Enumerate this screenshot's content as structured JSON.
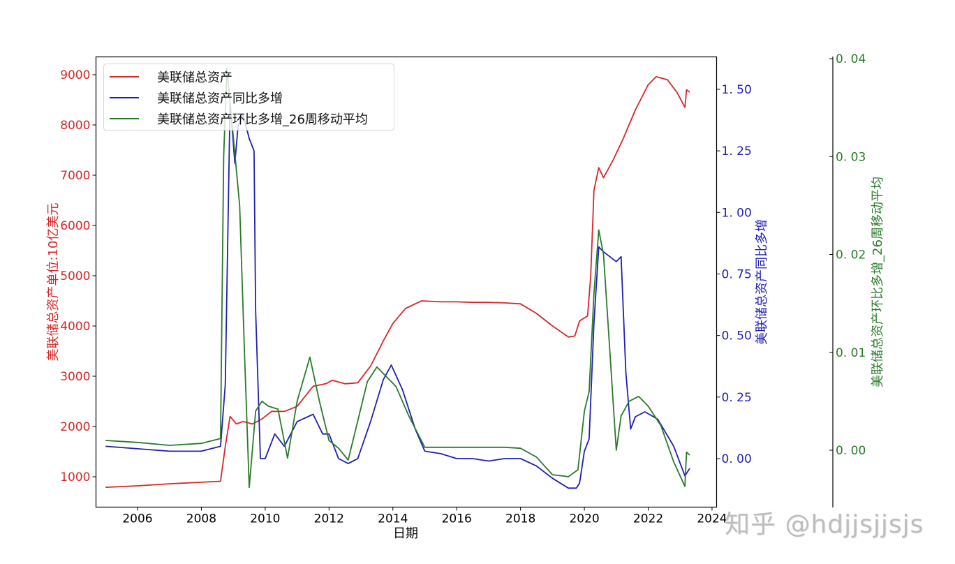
{
  "chart_data": {
    "type": "line",
    "title": "",
    "xlabel": "日期",
    "x_ticks": [
      "2006",
      "2008",
      "2010",
      "2012",
      "2014",
      "2016",
      "2018",
      "2020",
      "2022",
      "2024"
    ],
    "xlim": [
      2004.7,
      2024.1
    ],
    "axes": {
      "left": {
        "label": "美联储总资产单位:10亿美元",
        "color": "#d62728",
        "ticks": [
          "1000",
          "2000",
          "3000",
          "4000",
          "5000",
          "6000",
          "7000",
          "8000",
          "9000"
        ],
        "ylim": [
          400,
          9400
        ]
      },
      "right1": {
        "label": "美联储总资产同比多增",
        "color": "#1f1fb4",
        "ticks": [
          "0.00",
          "0.25",
          "0.50",
          "0.75",
          "1.00",
          "1.25",
          "1.50"
        ],
        "ylim": [
          -0.2,
          1.63
        ]
      },
      "right2": {
        "label": "美联储总资产环比多增_26周移动平均",
        "color": "#2a7a2a",
        "ticks": [
          "0.00",
          "0.01",
          "0.02",
          "0.03",
          "0.04"
        ],
        "ylim": [
          -0.006,
          0.0403
        ]
      }
    },
    "legend": {
      "position": "upper left",
      "entries": [
        "美联储总资产",
        "美联储总资产同比多增",
        "美联储总资产环比多增_26周移动平均"
      ]
    },
    "grid": false,
    "series": [
      {
        "name": "美联储总资产",
        "axis": "left",
        "color": "#d62728",
        "x": [
          2005.0,
          2006.0,
          2007.0,
          2008.0,
          2008.6,
          2008.75,
          2008.9,
          2009.1,
          2009.3,
          2009.6,
          2009.9,
          2010.2,
          2010.6,
          2011.0,
          2011.5,
          2011.9,
          2012.1,
          2012.5,
          2012.9,
          2013.3,
          2013.7,
          2014.0,
          2014.4,
          2014.9,
          2015.5,
          2016.0,
          2016.5,
          2017.0,
          2017.5,
          2018.0,
          2018.5,
          2019.0,
          2019.5,
          2019.7,
          2019.85,
          2020.1,
          2020.2,
          2020.3,
          2020.45,
          2020.6,
          2020.9,
          2021.2,
          2021.6,
          2022.0,
          2022.25,
          2022.6,
          2022.9,
          2023.15,
          2023.2,
          2023.3
        ],
        "values": [
          790,
          820,
          860,
          890,
          910,
          1600,
          2200,
          2050,
          2100,
          2050,
          2150,
          2300,
          2300,
          2400,
          2800,
          2850,
          2920,
          2850,
          2870,
          3200,
          3700,
          4050,
          4350,
          4500,
          4480,
          4480,
          4470,
          4470,
          4460,
          4440,
          4250,
          4000,
          3780,
          3800,
          4100,
          4200,
          5000,
          6700,
          7150,
          6950,
          7300,
          7700,
          8300,
          8800,
          8960,
          8900,
          8650,
          8350,
          8700,
          8650
        ]
      },
      {
        "name": "美联储总资产同比多增",
        "axis": "right1",
        "color": "#1f1fb4",
        "x": [
          2005.0,
          2006.0,
          2007.0,
          2008.0,
          2008.6,
          2008.75,
          2008.9,
          2009.05,
          2009.15,
          2009.3,
          2009.5,
          2009.65,
          2009.7,
          2009.85,
          2010.0,
          2010.3,
          2010.6,
          2011.0,
          2011.5,
          2011.8,
          2012.0,
          2012.3,
          2012.6,
          2012.9,
          2013.3,
          2013.7,
          2013.95,
          2014.3,
          2014.7,
          2015.0,
          2015.5,
          2016.0,
          2016.5,
          2017.0,
          2017.5,
          2018.0,
          2018.5,
          2019.0,
          2019.5,
          2019.75,
          2019.85,
          2020.0,
          2020.15,
          2020.3,
          2020.45,
          2020.6,
          2020.8,
          2021.0,
          2021.15,
          2021.3,
          2021.45,
          2021.6,
          2021.9,
          2022.3,
          2022.8,
          2023.15,
          2023.3
        ],
        "values": [
          0.05,
          0.04,
          0.03,
          0.03,
          0.05,
          0.3,
          1.45,
          1.2,
          1.35,
          1.4,
          1.3,
          1.25,
          0.6,
          0.0,
          0.0,
          0.1,
          0.05,
          0.15,
          0.18,
          0.1,
          0.1,
          0.0,
          -0.02,
          0.0,
          0.15,
          0.32,
          0.38,
          0.28,
          0.12,
          0.03,
          0.02,
          0.0,
          0.0,
          -0.01,
          0.0,
          0.0,
          -0.03,
          -0.08,
          -0.12,
          -0.12,
          -0.1,
          0.03,
          0.08,
          0.55,
          0.86,
          0.84,
          0.82,
          0.8,
          0.82,
          0.35,
          0.12,
          0.17,
          0.19,
          0.16,
          0.05,
          -0.07,
          -0.04
        ]
      },
      {
        "name": "美联储总资产环比多增_26周移动平均",
        "axis": "right2",
        "color": "#2a7a2a",
        "x": [
          2005.0,
          2006.0,
          2007.0,
          2008.0,
          2008.6,
          2008.7,
          2008.8,
          2009.0,
          2009.2,
          2009.35,
          2009.5,
          2009.7,
          2009.9,
          2010.1,
          2010.4,
          2010.7,
          2011.0,
          2011.4,
          2011.7,
          2012.0,
          2012.3,
          2012.6,
          2012.9,
          2013.2,
          2013.5,
          2013.8,
          2014.1,
          2014.5,
          2015.0,
          2015.5,
          2016.0,
          2016.5,
          2017.0,
          2017.5,
          2018.0,
          2018.5,
          2019.0,
          2019.5,
          2019.8,
          2020.0,
          2020.15,
          2020.3,
          2020.45,
          2020.6,
          2020.75,
          2021.0,
          2021.15,
          2021.4,
          2021.7,
          2022.0,
          2022.4,
          2022.8,
          2023.15,
          2023.2,
          2023.3
        ],
        "values": [
          0.001,
          0.0008,
          0.0005,
          0.0007,
          0.0012,
          0.03,
          0.039,
          0.032,
          0.025,
          0.01,
          -0.0038,
          0.004,
          0.005,
          0.0045,
          0.0042,
          -0.0008,
          0.005,
          0.0095,
          0.005,
          0.001,
          0.0002,
          -0.001,
          0.003,
          0.007,
          0.0085,
          0.0075,
          0.0065,
          0.0035,
          0.0003,
          0.0003,
          0.0003,
          0.0003,
          0.0003,
          0.0003,
          0.0002,
          -0.0007,
          -0.0025,
          -0.0027,
          -0.002,
          0.004,
          0.006,
          0.016,
          0.0225,
          0.02,
          0.0125,
          0.0,
          0.0035,
          0.005,
          0.0055,
          0.0045,
          0.0025,
          -0.0012,
          -0.0037,
          -0.0002,
          -0.0005
        ]
      }
    ]
  },
  "watermark": "知乎 @hdjjsjjsjs"
}
